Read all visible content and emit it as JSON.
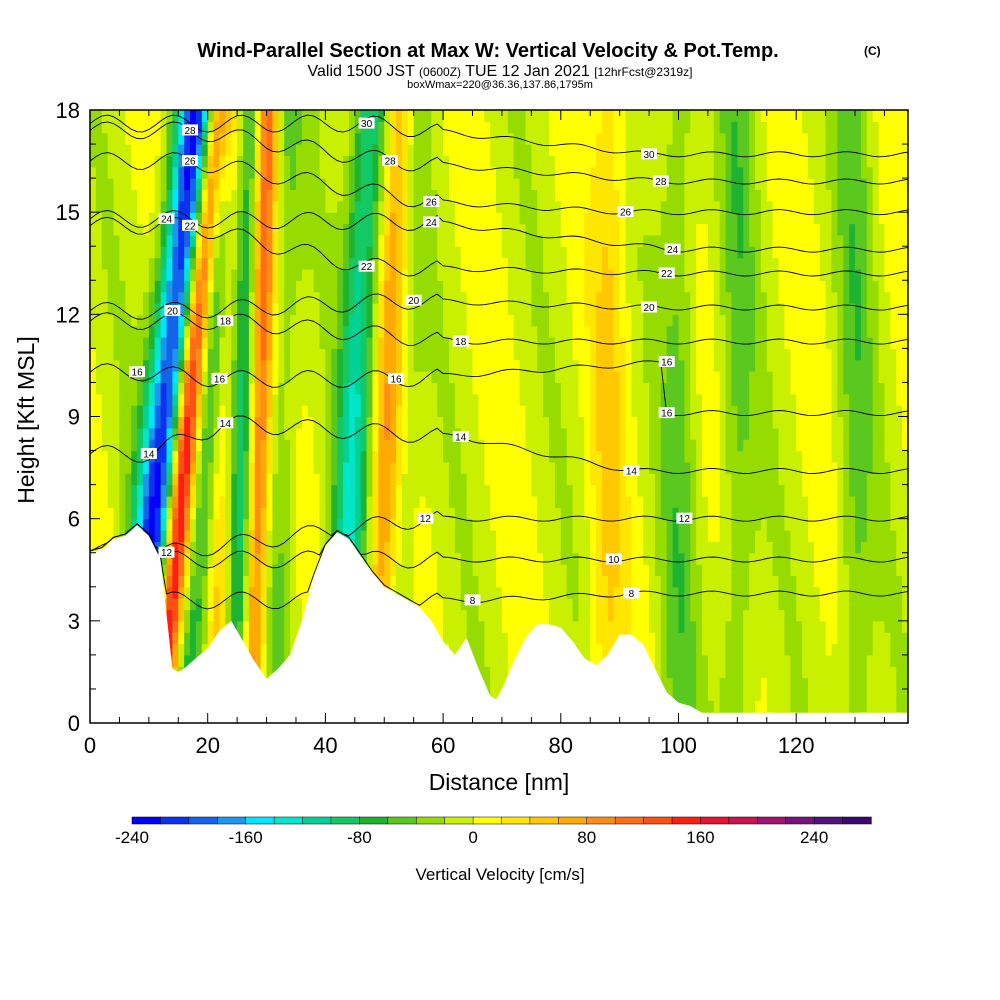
{
  "header": {
    "title_main": "Wind-Parallel Section at Max W: Vertical Velocity & Pot.Temp.",
    "title_unit": "(C)",
    "valid_prefix": "Valid 1500 JST",
    "valid_z": "(0600Z)",
    "valid_date": "TUE 12 Jan 2021",
    "forecast": "[12hrFcst@2319z]",
    "box_info": "boxWmax=220@36.36,137.86,1795m"
  },
  "chart_data": {
    "type": "heatmap",
    "xlabel": "Distance [nm]",
    "ylabel": "Height [Kft MSL]",
    "xlim": [
      0,
      139
    ],
    "ylim": [
      0,
      18
    ],
    "xticks": [
      0,
      20,
      40,
      60,
      80,
      100,
      120
    ],
    "yticks": [
      0,
      3,
      6,
      9,
      12,
      15,
      18
    ],
    "colorbar": {
      "title": "Vertical Velocity [cm/s]",
      "range": [
        -240,
        280
      ],
      "step": 20,
      "tick_values": [
        -240,
        -160,
        -80,
        0,
        80,
        160,
        240
      ],
      "colors": [
        "#0000ff",
        "#0a32f0",
        "#1464eb",
        "#1e96f0",
        "#00e6ff",
        "#00e6c8",
        "#00d296",
        "#14c864",
        "#1eb432",
        "#5ac81e",
        "#96dc00",
        "#c8f000",
        "#ffff00",
        "#ffe600",
        "#ffc800",
        "#ffaa00",
        "#ff8c14",
        "#ff6e14",
        "#ff5014",
        "#ff1e14",
        "#e61432",
        "#c81450",
        "#a0146e",
        "#781478",
        "#501478",
        "#3c0a6e"
      ]
    },
    "terrain_kft": [
      [
        0,
        5.0
      ],
      [
        2,
        5.1
      ],
      [
        4,
        5.4
      ],
      [
        6,
        5.5
      ],
      [
        8,
        5.8
      ],
      [
        10,
        5.5
      ],
      [
        12,
        4.8
      ],
      [
        13,
        3.2
      ],
      [
        14,
        1.6
      ],
      [
        15,
        1.5
      ],
      [
        16,
        1.6
      ],
      [
        18,
        1.9
      ],
      [
        20,
        2.2
      ],
      [
        22,
        2.7
      ],
      [
        24,
        3.0
      ],
      [
        26,
        2.4
      ],
      [
        28,
        1.8
      ],
      [
        30,
        1.3
      ],
      [
        32,
        1.6
      ],
      [
        34,
        2.0
      ],
      [
        36,
        3.0
      ],
      [
        38,
        4.3
      ],
      [
        40,
        5.2
      ],
      [
        42,
        5.6
      ],
      [
        44,
        5.4
      ],
      [
        46,
        4.9
      ],
      [
        48,
        4.4
      ],
      [
        50,
        4.0
      ],
      [
        52,
        3.8
      ],
      [
        54,
        3.6
      ],
      [
        56,
        3.4
      ],
      [
        58,
        3.0
      ],
      [
        60,
        2.4
      ],
      [
        62,
        2.0
      ],
      [
        64,
        2.5
      ],
      [
        66,
        1.6
      ],
      [
        68,
        0.8
      ],
      [
        69,
        0.7
      ],
      [
        70,
        1.0
      ],
      [
        72,
        1.8
      ],
      [
        74,
        2.5
      ],
      [
        76,
        2.9
      ],
      [
        78,
        2.9
      ],
      [
        80,
        2.8
      ],
      [
        82,
        2.4
      ],
      [
        84,
        1.9
      ],
      [
        86,
        1.7
      ],
      [
        88,
        2.0
      ],
      [
        90,
        2.6
      ],
      [
        92,
        2.6
      ],
      [
        94,
        2.3
      ],
      [
        96,
        1.6
      ],
      [
        98,
        0.9
      ],
      [
        100,
        0.6
      ],
      [
        102,
        0.5
      ],
      [
        104,
        0.3
      ],
      [
        139,
        0.3
      ]
    ],
    "velocity_features": [
      {
        "x": 11,
        "w": 3.5,
        "tilt": 0.6,
        "v": -220
      },
      {
        "x": 15,
        "w": 2.2,
        "tilt": 0.55,
        "v": 220
      },
      {
        "x": 19,
        "w": 3.0,
        "tilt": 0.3,
        "v": -80
      },
      {
        "x": 22,
        "w": 2.0,
        "tilt": 0.2,
        "v": 60
      },
      {
        "x": 25.5,
        "w": 2.0,
        "tilt": 0.15,
        "v": -80
      },
      {
        "x": 28.5,
        "w": 2.0,
        "tilt": 0.15,
        "v": 120
      },
      {
        "x": 32,
        "w": 3.0,
        "tilt": 0.1,
        "v": -40
      },
      {
        "x": 44,
        "w": 3.0,
        "tilt": 0.3,
        "v": -110
      },
      {
        "x": 50,
        "w": 2.5,
        "tilt": 0.25,
        "v": 80
      },
      {
        "x": 53,
        "w": 2.5,
        "tilt": 0.2,
        "v": -30
      },
      {
        "x": 88,
        "w": 3.0,
        "tilt": 0.05,
        "v": 40
      },
      {
        "x": 100,
        "w": 3.0,
        "tilt": 0.0,
        "v": -40
      },
      {
        "x": 110,
        "w": 3.0,
        "tilt": 0.0,
        "v": -40
      },
      {
        "x": 130,
        "w": 3.0,
        "tilt": 0.0,
        "v": -40
      }
    ],
    "isentropes": [
      {
        "label": "8",
        "label_pos": [
          [
            65,
            3.6
          ],
          [
            92,
            3.8
          ]
        ]
      },
      {
        "label": "10",
        "label_pos": [
          [
            89,
            4.8
          ]
        ]
      },
      {
        "label": "12",
        "label_pos": [
          [
            13,
            5.0
          ],
          [
            57,
            6.0
          ],
          [
            101,
            6.0
          ]
        ]
      },
      {
        "label": "14",
        "label_pos": [
          [
            10,
            7.9
          ],
          [
            23,
            8.8
          ],
          [
            63,
            8.4
          ],
          [
            92,
            7.4
          ]
        ]
      },
      {
        "label": "16",
        "label_pos": [
          [
            8,
            10.3
          ],
          [
            22,
            10.1
          ],
          [
            52,
            10.1
          ],
          [
            98,
            10.6
          ],
          [
            98,
            9.1
          ]
        ]
      },
      {
        "label": "18",
        "label_pos": [
          [
            23,
            11.8
          ],
          [
            63,
            11.2
          ]
        ]
      },
      {
        "label": "20",
        "label_pos": [
          [
            14,
            12.1
          ],
          [
            55,
            12.4
          ],
          [
            95,
            12.2
          ]
        ]
      },
      {
        "label": "22",
        "label_pos": [
          [
            17,
            14.6
          ],
          [
            47,
            13.4
          ],
          [
            98,
            13.2
          ]
        ]
      },
      {
        "label": "24",
        "label_pos": [
          [
            13,
            14.8
          ],
          [
            58,
            14.7
          ],
          [
            99,
            13.9
          ]
        ]
      },
      {
        "label": "26",
        "label_pos": [
          [
            17,
            16.5
          ],
          [
            58,
            15.3
          ],
          [
            91,
            15.0
          ]
        ]
      },
      {
        "label": "28",
        "label_pos": [
          [
            17,
            17.4
          ],
          [
            51,
            16.5
          ],
          [
            97,
            15.9
          ]
        ]
      },
      {
        "label": "30",
        "label_pos": [
          [
            47,
            17.6
          ],
          [
            95,
            16.7
          ]
        ]
      }
    ]
  }
}
